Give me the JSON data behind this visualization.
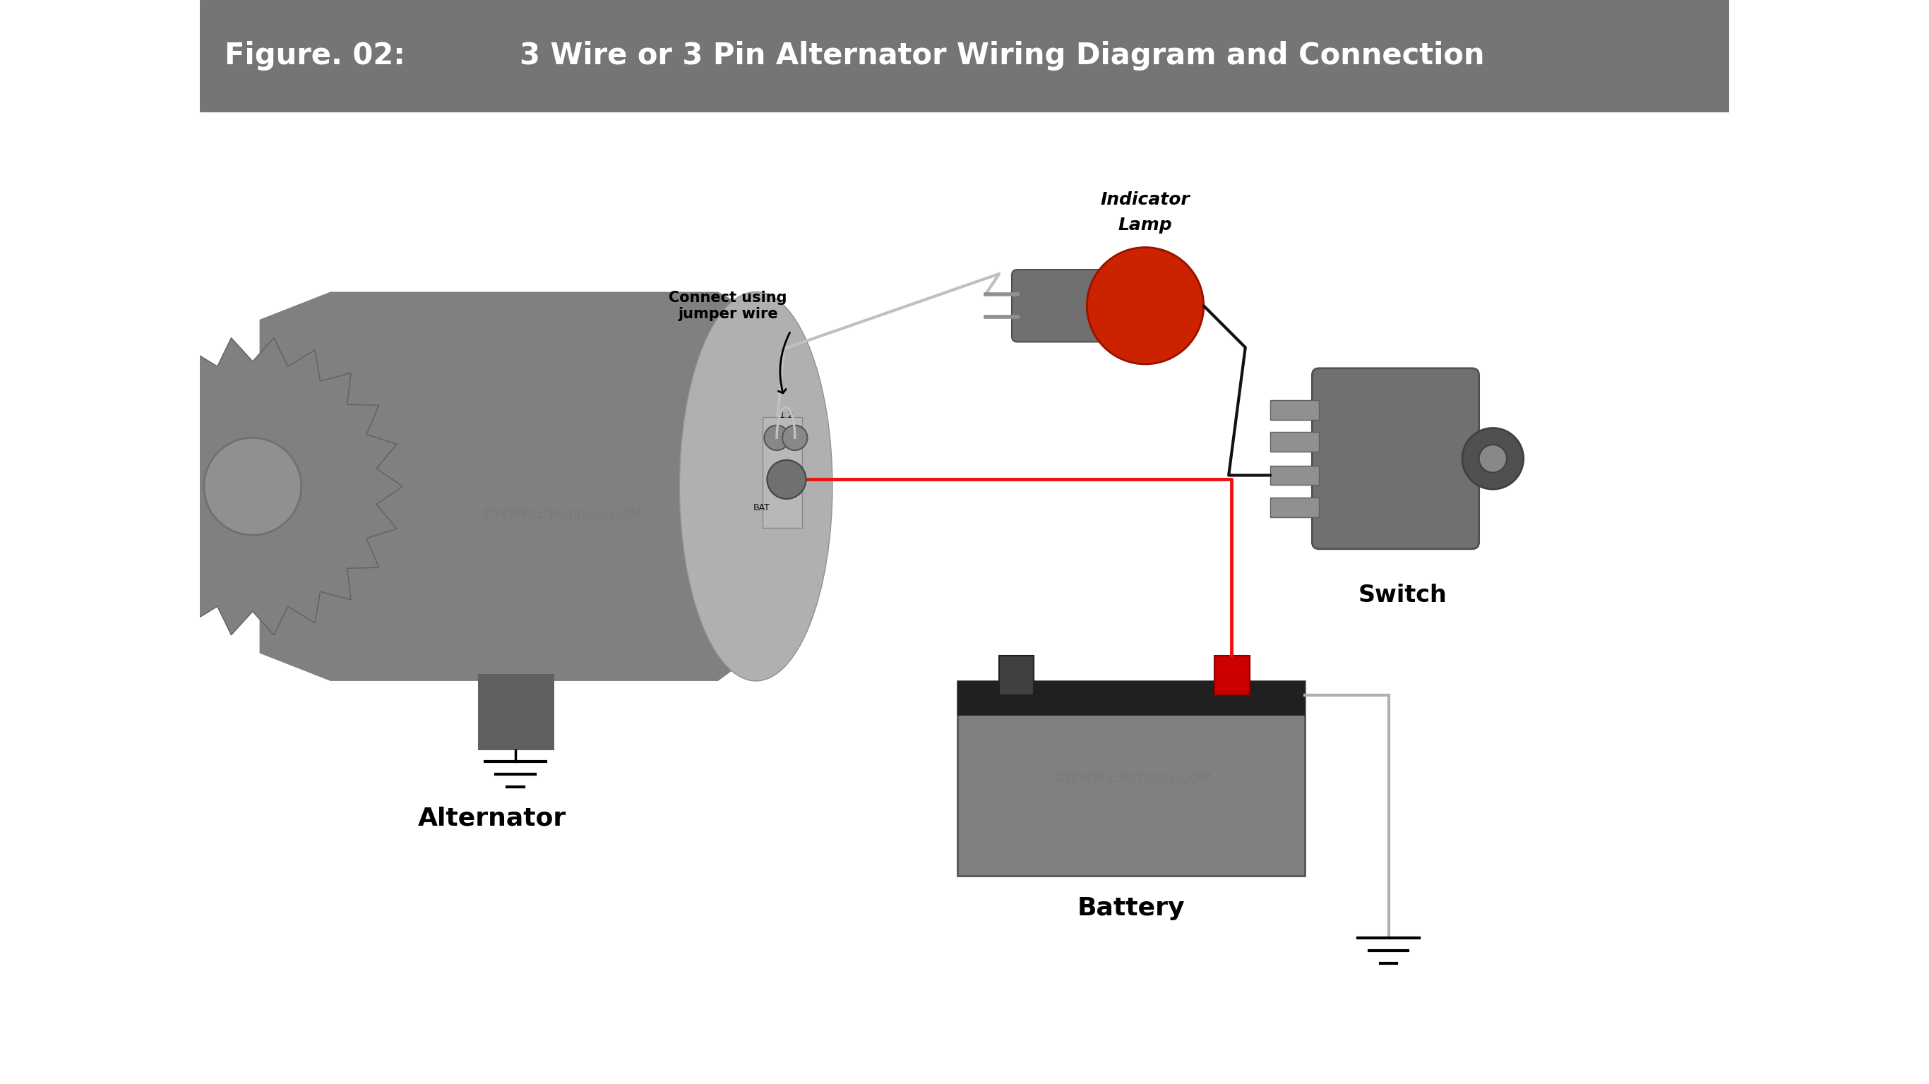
{
  "title_fig": "Figure. 02:",
  "title_main": "3 Wire or 3 Pin Alternator Wiring Diagram and Connection",
  "title_bg": "#757575",
  "title_color": "#ffffff",
  "bg_color": "#ffffff",
  "alt_body_color": "#808080",
  "alt_face_color": "#b0b0b0",
  "alt_face_edge": "#909090",
  "alt_gear_color": "#808080",
  "alt_hub_color": "#909090",
  "conn_bg_color": "#c8c8c8",
  "conn_pin_color": "#909090",
  "conn_bat_color": "#707070",
  "lamp_socket_color": "#707070",
  "lamp_pin_color": "#909090",
  "lamp_bulb_color": "#cc2200",
  "lamp_bulb_edge": "#991100",
  "switch_body_color": "#707070",
  "switch_pin_color": "#909090",
  "switch_knob_color": "#505050",
  "bat_body_color": "#808080",
  "bat_top_color": "#202020",
  "bat_pos_color": "#cc0000",
  "bat_neg_color": "#404040",
  "wire_red": "#ee1111",
  "wire_black": "#111111",
  "wire_gray": "#c0c0c0",
  "watermark": "©WWW.ETechnoG.COM",
  "alt_label": "Alternator",
  "bat_label": "Battery",
  "sw_label": "Switch",
  "lamp_label_1": "Indicator",
  "lamp_label_2": "Lamp",
  "jumper_label": "Connect using\njumper wire"
}
